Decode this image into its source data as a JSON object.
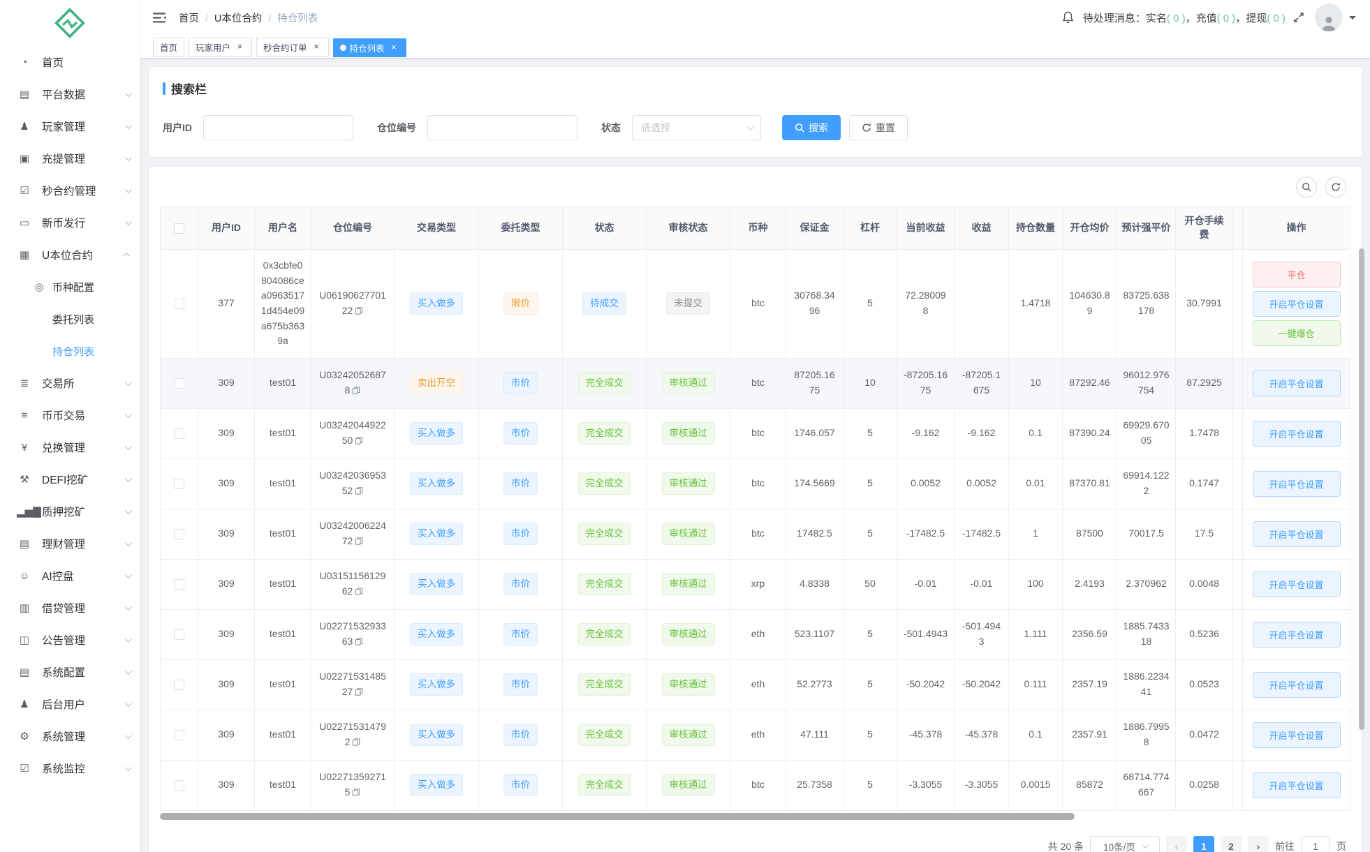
{
  "colors": {
    "primary": "#409eff",
    "success": "#67c23a",
    "warning": "#e6a23c",
    "danger": "#f56c6c",
    "info": "#909399",
    "logo_green": "#3eb37f",
    "notice_count": "#68c3ab"
  },
  "icons": {
    "close": "×"
  },
  "sidebar": {
    "items": [
      {
        "label": "首页",
        "icon": "dashboard-icon",
        "glyph": "◔",
        "expandable": false
      },
      {
        "label": "平台数据",
        "icon": "platform-data-icon",
        "glyph": "▤",
        "expandable": true
      },
      {
        "label": "玩家管理",
        "icon": "player-management-icon",
        "glyph": "♟",
        "expandable": true
      },
      {
        "label": "充提管理",
        "icon": "deposit-withdraw-icon",
        "glyph": "▣",
        "expandable": true
      },
      {
        "label": "秒合约管理",
        "icon": "seconds-contract-icon",
        "glyph": "☑",
        "expandable": true
      },
      {
        "label": "新币发行",
        "icon": "new-coin-issue-icon",
        "glyph": "▭",
        "expandable": true
      },
      {
        "label": "U本位合约",
        "icon": "usdt-contract-icon",
        "glyph": "▦",
        "expandable": true,
        "expanded": true,
        "children": [
          {
            "label": "币种配置",
            "icon": "coin-config-icon",
            "glyph": "◎",
            "active": false
          },
          {
            "label": "委托列表",
            "icon": "",
            "glyph": "",
            "active": false
          },
          {
            "label": "持仓列表",
            "icon": "",
            "glyph": "",
            "active": true
          }
        ]
      },
      {
        "label": "交易所",
        "icon": "exchange-icon",
        "glyph": "≣",
        "expandable": true
      },
      {
        "label": "币币交易",
        "icon": "spot-trading-icon",
        "glyph": "≡",
        "expandable": true
      },
      {
        "label": "兑换管理",
        "icon": "swap-management-icon",
        "glyph": "¥",
        "expandable": true
      },
      {
        "label": "DEFI挖矿",
        "icon": "defi-mining-icon",
        "glyph": "⚒",
        "expandable": true
      },
      {
        "label": "质押挖矿",
        "icon": "staking-mining-icon",
        "glyph": "▂▅▇",
        "expandable": true
      },
      {
        "label": "理财管理",
        "icon": "wealth-management-icon",
        "glyph": "▤",
        "expandable": true
      },
      {
        "label": "AI控盘",
        "icon": "ai-control-icon",
        "glyph": "☺",
        "expandable": true
      },
      {
        "label": "借贷管理",
        "icon": "lending-management-icon",
        "glyph": "▥",
        "expandable": true
      },
      {
        "label": "公告管理",
        "icon": "announcement-icon",
        "glyph": "◫",
        "expandable": true
      },
      {
        "label": "系统配置",
        "icon": "system-config-icon",
        "glyph": "▤",
        "expandable": true
      },
      {
        "label": "后台用户",
        "icon": "admin-users-icon",
        "glyph": "♟",
        "expandable": true
      },
      {
        "label": "系统管理",
        "icon": "system-management-icon",
        "glyph": "⚙",
        "expandable": true
      },
      {
        "label": "系统监控",
        "icon": "system-monitor-icon",
        "glyph": "☑",
        "expandable": true
      }
    ]
  },
  "header": {
    "breadcrumb": [
      "首页",
      "U本位合约",
      "持仓列表"
    ],
    "breadcrumb_separator": "/",
    "notice_prefix": "待处理消息：",
    "notice_separator": "，",
    "notice_items": [
      {
        "label": "实名",
        "count": "0"
      },
      {
        "label": "充值",
        "count": "0"
      },
      {
        "label": "提现",
        "count": "0"
      }
    ]
  },
  "tabs": [
    {
      "label": "首页",
      "closable": false,
      "active": false
    },
    {
      "label": "玩家用户",
      "closable": true,
      "active": false
    },
    {
      "label": "秒合约订单",
      "closable": true,
      "active": false
    },
    {
      "label": "持仓列表",
      "closable": true,
      "active": true
    }
  ],
  "search": {
    "title": "搜索栏",
    "user_id_label": "用户ID",
    "user_id_value": "",
    "position_no_label": "仓位编号",
    "position_no_value": "",
    "status_label": "状态",
    "status_placeholder": "请选择",
    "search_label": "搜索",
    "reset_label": "重置"
  },
  "table": {
    "columns": [
      "用户ID",
      "用户名",
      "仓位编号",
      "交易类型",
      "委托类型",
      "状态",
      "审核状态",
      "币种",
      "保证金",
      "杠杆",
      "当前收益",
      "收益",
      "持仓数量",
      "开仓均价",
      "预计强平价",
      "开仓手续费",
      "操作"
    ],
    "rows": [
      {
        "user_id": "377",
        "username": "0x3cbfe0804086cea09635171d454e09a675b3639a",
        "position_no": "U0619062770122",
        "trade_type": {
          "label": "买入做多",
          "kind": "primary"
        },
        "order_type": {
          "label": "限价",
          "kind": "warning"
        },
        "status": {
          "label": "待成交",
          "kind": "primary"
        },
        "audit": {
          "label": "未提交",
          "kind": "info"
        },
        "coin": "btc",
        "margin": "30768.3496",
        "leverage": "5",
        "current_profit": "72.280098",
        "profit": "",
        "quantity": "1.4718",
        "open_price": "104630.89",
        "liq_price": "83725.638178",
        "fee": "30.7991",
        "highlighted": false,
        "actions": [
          {
            "label": "平仓",
            "kind": "danger"
          },
          {
            "label": "开启平仓设置",
            "kind": "primary"
          },
          {
            "label": "一键爆仓",
            "kind": "success"
          }
        ]
      },
      {
        "user_id": "309",
        "username": "test01",
        "position_no": "U032420526878",
        "trade_type": {
          "label": "卖出开空",
          "kind": "warning"
        },
        "order_type": {
          "label": "市价",
          "kind": "primary"
        },
        "status": {
          "label": "完全成交",
          "kind": "success"
        },
        "audit": {
          "label": "审核通过",
          "kind": "success"
        },
        "coin": "btc",
        "margin": "87205.1675",
        "leverage": "10",
        "current_profit": "-87205.1675",
        "profit": "-87205.1675",
        "quantity": "10",
        "open_price": "87292.46",
        "liq_price": "96012.976754",
        "fee": "87.2925",
        "highlighted": true,
        "actions": [
          {
            "label": "开启平仓设置",
            "kind": "primary"
          }
        ]
      },
      {
        "user_id": "309",
        "username": "test01",
        "position_no": "U0324204492250",
        "trade_type": {
          "label": "买入做多",
          "kind": "primary"
        },
        "order_type": {
          "label": "市价",
          "kind": "primary"
        },
        "status": {
          "label": "完全成交",
          "kind": "success"
        },
        "audit": {
          "label": "审核通过",
          "kind": "success"
        },
        "coin": "btc",
        "margin": "1746.057",
        "leverage": "5",
        "current_profit": "-9.162",
        "profit": "-9.162",
        "quantity": "0.1",
        "open_price": "87390.24",
        "liq_price": "69929.67005",
        "fee": "1.7478",
        "highlighted": false,
        "actions": [
          {
            "label": "开启平仓设置",
            "kind": "primary"
          }
        ]
      },
      {
        "user_id": "309",
        "username": "test01",
        "position_no": "U0324203695352",
        "trade_type": {
          "label": "买入做多",
          "kind": "primary"
        },
        "order_type": {
          "label": "市价",
          "kind": "primary"
        },
        "status": {
          "label": "完全成交",
          "kind": "success"
        },
        "audit": {
          "label": "审核通过",
          "kind": "success"
        },
        "coin": "btc",
        "margin": "174.5669",
        "leverage": "5",
        "current_profit": "0.0052",
        "profit": "0.0052",
        "quantity": "0.01",
        "open_price": "87370.81",
        "liq_price": "69914.1222",
        "fee": "0.1747",
        "highlighted": false,
        "actions": [
          {
            "label": "开启平仓设置",
            "kind": "primary"
          }
        ]
      },
      {
        "user_id": "309",
        "username": "test01",
        "position_no": "U0324200622472",
        "trade_type": {
          "label": "买入做多",
          "kind": "primary"
        },
        "order_type": {
          "label": "市价",
          "kind": "primary"
        },
        "status": {
          "label": "完全成交",
          "kind": "success"
        },
        "audit": {
          "label": "审核通过",
          "kind": "success"
        },
        "coin": "btc",
        "margin": "17482.5",
        "leverage": "5",
        "current_profit": "-17482.5",
        "profit": "-17482.5",
        "quantity": "1",
        "open_price": "87500",
        "liq_price": "70017.5",
        "fee": "17.5",
        "highlighted": false,
        "actions": [
          {
            "label": "开启平仓设置",
            "kind": "primary"
          }
        ]
      },
      {
        "user_id": "309",
        "username": "test01",
        "position_no": "U0315115612962",
        "trade_type": {
          "label": "买入做多",
          "kind": "primary"
        },
        "order_type": {
          "label": "市价",
          "kind": "primary"
        },
        "status": {
          "label": "完全成交",
          "kind": "success"
        },
        "audit": {
          "label": "审核通过",
          "kind": "success"
        },
        "coin": "xrp",
        "margin": "4.8338",
        "leverage": "50",
        "current_profit": "-0.01",
        "profit": "-0.01",
        "quantity": "100",
        "open_price": "2.4193",
        "liq_price": "2.370962",
        "fee": "0.0048",
        "highlighted": false,
        "actions": [
          {
            "label": "开启平仓设置",
            "kind": "primary"
          }
        ]
      },
      {
        "user_id": "309",
        "username": "test01",
        "position_no": "U0227153293363",
        "trade_type": {
          "label": "买入做多",
          "kind": "primary"
        },
        "order_type": {
          "label": "市价",
          "kind": "primary"
        },
        "status": {
          "label": "完全成交",
          "kind": "success"
        },
        "audit": {
          "label": "审核通过",
          "kind": "success"
        },
        "coin": "eth",
        "margin": "523.1107",
        "leverage": "5",
        "current_profit": "-501.4943",
        "profit": "-501.4943",
        "quantity": "1.111",
        "open_price": "2356.59",
        "liq_price": "1885.743318",
        "fee": "0.5236",
        "highlighted": false,
        "actions": [
          {
            "label": "开启平仓设置",
            "kind": "primary"
          }
        ]
      },
      {
        "user_id": "309",
        "username": "test01",
        "position_no": "U0227153148527",
        "trade_type": {
          "label": "买入做多",
          "kind": "primary"
        },
        "order_type": {
          "label": "市价",
          "kind": "primary"
        },
        "status": {
          "label": "完全成交",
          "kind": "success"
        },
        "audit": {
          "label": "审核通过",
          "kind": "success"
        },
        "coin": "eth",
        "margin": "52.2773",
        "leverage": "5",
        "current_profit": "-50.2042",
        "profit": "-50.2042",
        "quantity": "0.111",
        "open_price": "2357.19",
        "liq_price": "1886.223441",
        "fee": "0.0523",
        "highlighted": false,
        "actions": [
          {
            "label": "开启平仓设置",
            "kind": "primary"
          }
        ]
      },
      {
        "user_id": "309",
        "username": "test01",
        "position_no": "U022715314792",
        "trade_type": {
          "label": "买入做多",
          "kind": "primary"
        },
        "order_type": {
          "label": "市价",
          "kind": "primary"
        },
        "status": {
          "label": "完全成交",
          "kind": "success"
        },
        "audit": {
          "label": "审核通过",
          "kind": "success"
        },
        "coin": "eth",
        "margin": "47.111",
        "leverage": "5",
        "current_profit": "-45.378",
        "profit": "-45.378",
        "quantity": "0.1",
        "open_price": "2357.91",
        "liq_price": "1886.79958",
        "fee": "0.0472",
        "highlighted": false,
        "actions": [
          {
            "label": "开启平仓设置",
            "kind": "primary"
          }
        ]
      },
      {
        "user_id": "309",
        "username": "test01",
        "position_no": "U022713592715",
        "trade_type": {
          "label": "买入做多",
          "kind": "primary"
        },
        "order_type": {
          "label": "市价",
          "kind": "primary"
        },
        "status": {
          "label": "完全成交",
          "kind": "success"
        },
        "audit": {
          "label": "审核通过",
          "kind": "success"
        },
        "coin": "btc",
        "margin": "25.7358",
        "leverage": "5",
        "current_profit": "-3.3055",
        "profit": "-3.3055",
        "quantity": "0.0015",
        "open_price": "85872",
        "liq_price": "68714.774667",
        "fee": "0.0258",
        "highlighted": false,
        "actions": [
          {
            "label": "开启平仓设置",
            "kind": "primary"
          }
        ]
      }
    ]
  },
  "pagination": {
    "total": "共 20 条",
    "page_size": "10条/页",
    "prev": "‹",
    "next": "›",
    "pages": [
      "1",
      "2"
    ],
    "active_page": "1",
    "goto_label": "前往",
    "goto_value": "1",
    "goto_unit": "页"
  }
}
